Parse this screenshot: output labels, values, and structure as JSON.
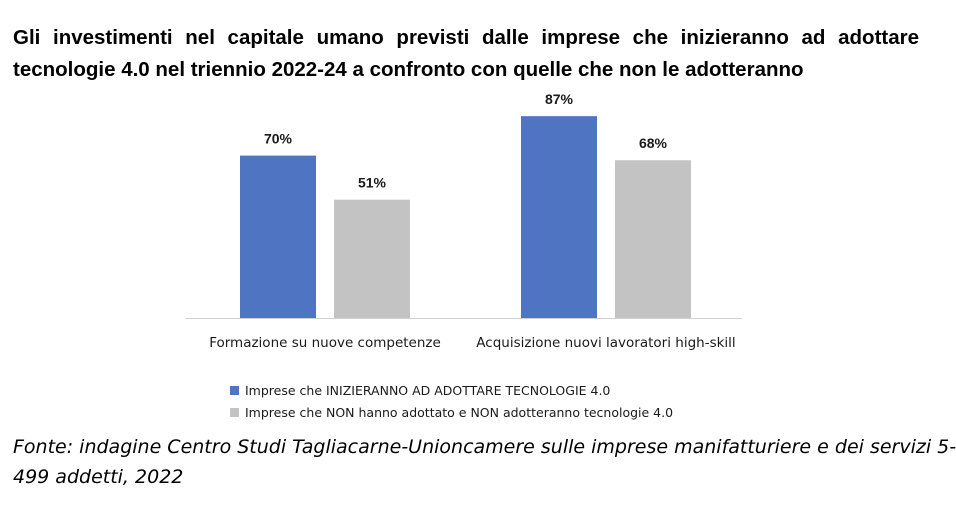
{
  "title_line1": "Gli investimenti nel capitale umano previsti dalle imprese che inizieranno ad adottare",
  "title_line2": "tecnologie 4.0 nel triennio 2022-24 a confronto con quelle che non le adotteranno",
  "source_line1": "Fonte: indagine Centro Studi Tagliacarne-Unioncamere sulle imprese manifatturiere e dei servizi 5-",
  "source_line2": "499 addetti, 2022",
  "colors": {
    "series1": "#4f74c1",
    "series2": "#c3c3c3",
    "axis": "#d0d0d0",
    "text": "#1a1a1a"
  },
  "chart_data": {
    "type": "bar",
    "title": "Gli investimenti nel capitale umano previsti dalle imprese che inizieranno ad adottare tecnologie 4.0 nel triennio 2022-24 a confronto con quelle che non le adotteranno",
    "categories": [
      "Formazione su nuove competenze",
      "Acquisizione nuovi lavoratori high-skill"
    ],
    "series": [
      {
        "name": "Imprese che INIZIERANNO AD ADOTTARE TECNOLOGIE 4.0",
        "values": [
          70,
          87
        ],
        "labels": [
          "70%",
          "87%"
        ]
      },
      {
        "name": "Imprese che NON hanno adottato e NON adotteranno tecnologie 4.0",
        "values": [
          51,
          68
        ],
        "labels": [
          "51%",
          "68%"
        ]
      }
    ],
    "ylim": [
      0,
      100
    ],
    "grid": false,
    "legend_position": "bottom"
  }
}
